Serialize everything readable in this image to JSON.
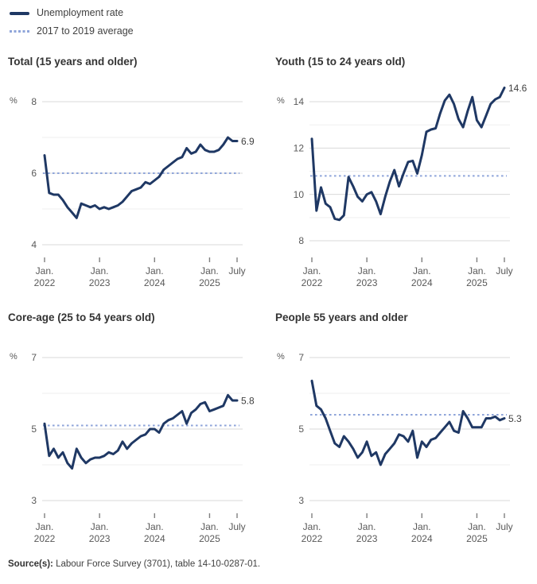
{
  "colors": {
    "line": "#1F3864",
    "average_line": "#8FA5DA",
    "grid_major": "#D9D9D9",
    "grid_minor": "#EFEFEF",
    "axis_text": "#595959",
    "title_text": "#333333",
    "value_label_text": "#404040",
    "tick_mark": "#7F7F7F",
    "background": "#FFFFFF"
  },
  "legend": [
    {
      "label": "Unemployment rate",
      "style": "solid"
    },
    {
      "label": "2017 to 2019 average",
      "style": "dashed"
    }
  ],
  "x_axis": {
    "ticks": [
      {
        "month": 0,
        "line1": "Jan.",
        "line2": "2022"
      },
      {
        "month": 12,
        "line1": "Jan.",
        "line2": "2023"
      },
      {
        "month": 24,
        "line1": "Jan.",
        "line2": "2024"
      },
      {
        "month": 36,
        "line1": "Jan.",
        "line2": "2025"
      },
      {
        "month": 42,
        "line1": "July",
        "line2": ""
      }
    ]
  },
  "source": {
    "label": "Source(s):",
    "text": " Labour Force Survey (3701), table 14-10-0287-01."
  },
  "months": [
    "2022-01",
    "2022-02",
    "2022-03",
    "2022-04",
    "2022-05",
    "2022-06",
    "2022-07",
    "2022-08",
    "2022-09",
    "2022-10",
    "2022-11",
    "2022-12",
    "2023-01",
    "2023-02",
    "2023-03",
    "2023-04",
    "2023-05",
    "2023-06",
    "2023-07",
    "2023-08",
    "2023-09",
    "2023-10",
    "2023-11",
    "2023-12",
    "2024-01",
    "2024-02",
    "2024-03",
    "2024-04",
    "2024-05",
    "2024-06",
    "2024-07",
    "2024-08",
    "2024-09",
    "2024-10",
    "2024-11",
    "2024-12",
    "2025-01",
    "2025-02",
    "2025-03",
    "2025-04",
    "2025-05",
    "2025-06",
    "2025-07"
  ],
  "chart_data": [
    {
      "type": "line",
      "name": "total",
      "title": "Total (15 years and older)",
      "unit": "%",
      "ylim": [
        4,
        8
      ],
      "yticks_all": [
        8,
        7,
        6,
        5,
        4
      ],
      "yticks_labeled": [
        8,
        6,
        4
      ],
      "average_2017_2019": 6.0,
      "end_label": "6.9",
      "values": [
        6.5,
        5.45,
        5.4,
        5.4,
        5.25,
        5.05,
        4.9,
        4.75,
        5.15,
        5.1,
        5.05,
        5.1,
        5.0,
        5.05,
        5.0,
        5.05,
        5.1,
        5.2,
        5.35,
        5.5,
        5.55,
        5.6,
        5.75,
        5.7,
        5.8,
        5.9,
        6.1,
        6.2,
        6.3,
        6.4,
        6.45,
        6.7,
        6.55,
        6.6,
        6.8,
        6.65,
        6.6,
        6.6,
        6.65,
        6.8,
        7.0,
        6.9,
        6.9
      ]
    },
    {
      "type": "line",
      "name": "youth",
      "title": "Youth (15 to 24 years old)",
      "unit": "%",
      "ylim": [
        8,
        14
      ],
      "yticks_all": [
        14,
        13,
        12,
        11,
        10,
        9,
        8
      ],
      "yticks_labeled": [
        14,
        12,
        10,
        8
      ],
      "average_2017_2019": 10.8,
      "end_label": "14.6",
      "values": [
        12.4,
        9.3,
        10.3,
        9.6,
        9.45,
        8.95,
        8.9,
        9.1,
        10.75,
        10.35,
        9.9,
        9.7,
        10.0,
        10.1,
        9.7,
        9.15,
        9.9,
        10.55,
        11.05,
        10.35,
        10.9,
        11.4,
        11.45,
        10.9,
        11.7,
        12.7,
        12.8,
        12.85,
        13.5,
        14.05,
        14.3,
        13.9,
        13.25,
        12.9,
        13.6,
        14.2,
        13.2,
        12.9,
        13.4,
        13.9,
        14.1,
        14.2,
        14.6
      ]
    },
    {
      "type": "line",
      "name": "core-age",
      "title": "Core-age (25 to 54 years old)",
      "unit": "%",
      "ylim": [
        3,
        7
      ],
      "yticks_all": [
        7,
        6,
        5,
        4,
        3
      ],
      "yticks_labeled": [
        7,
        5,
        3
      ],
      "average_2017_2019": 5.1,
      "end_label": "5.8",
      "values": [
        5.15,
        4.25,
        4.45,
        4.2,
        4.35,
        4.05,
        3.9,
        4.45,
        4.2,
        4.05,
        4.15,
        4.2,
        4.2,
        4.25,
        4.35,
        4.3,
        4.4,
        4.65,
        4.45,
        4.6,
        4.7,
        4.8,
        4.85,
        5.0,
        5.0,
        4.9,
        5.15,
        5.25,
        5.3,
        5.4,
        5.5,
        5.15,
        5.45,
        5.55,
        5.7,
        5.75,
        5.5,
        5.55,
        5.6,
        5.65,
        5.95,
        5.8,
        5.8
      ]
    },
    {
      "type": "line",
      "name": "55-plus",
      "title": "People 55 years and older",
      "unit": "%",
      "ylim": [
        3,
        7
      ],
      "yticks_all": [
        7,
        6,
        5,
        4,
        3
      ],
      "yticks_labeled": [
        7,
        5,
        3
      ],
      "average_2017_2019": 5.4,
      "end_label": "5.3",
      "values": [
        6.35,
        5.65,
        5.55,
        5.3,
        4.95,
        4.6,
        4.5,
        4.8,
        4.65,
        4.45,
        4.2,
        4.35,
        4.65,
        4.25,
        4.35,
        4.0,
        4.3,
        4.45,
        4.6,
        4.85,
        4.8,
        4.65,
        4.95,
        4.2,
        4.65,
        4.5,
        4.7,
        4.75,
        4.9,
        5.05,
        5.2,
        4.95,
        4.9,
        5.5,
        5.3,
        5.05,
        5.05,
        5.05,
        5.3,
        5.3,
        5.35,
        5.25,
        5.3
      ]
    }
  ]
}
